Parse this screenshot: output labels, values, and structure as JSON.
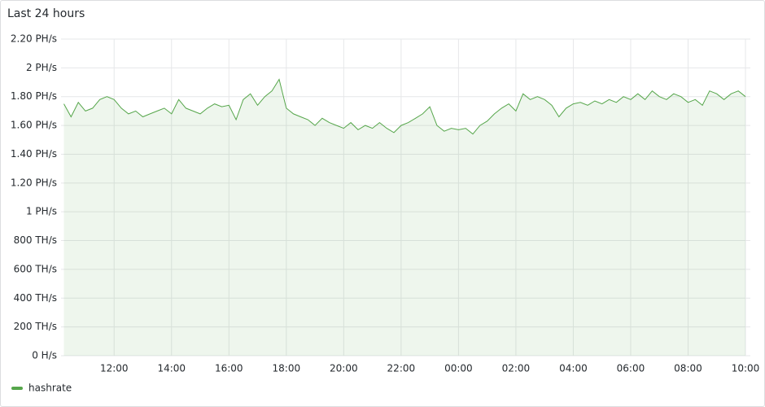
{
  "chart_data": {
    "type": "line",
    "title": "Last 24 hours",
    "x": [
      10.25,
      10.5,
      10.75,
      11,
      11.25,
      11.5,
      11.75,
      12,
      12.25,
      12.5,
      12.75,
      13,
      13.25,
      13.5,
      13.75,
      14,
      14.25,
      14.5,
      14.75,
      15,
      15.25,
      15.5,
      15.75,
      16,
      16.25,
      16.5,
      16.75,
      17,
      17.25,
      17.5,
      17.75,
      18,
      18.25,
      18.5,
      18.75,
      19,
      19.25,
      19.5,
      19.75,
      20,
      20.25,
      20.5,
      20.75,
      21,
      21.25,
      21.5,
      21.75,
      22,
      22.25,
      22.5,
      22.75,
      23,
      23.25,
      23.5,
      23.75,
      24,
      24.25,
      24.5,
      24.75,
      25,
      25.25,
      25.5,
      25.75,
      26,
      26.25,
      26.5,
      26.75,
      27,
      27.25,
      27.5,
      27.75,
      28,
      28.25,
      28.5,
      28.75,
      29,
      29.25,
      29.5,
      29.75,
      30,
      30.25,
      30.5,
      30.75,
      31,
      31.25,
      31.5,
      31.75,
      32,
      32.25,
      32.5,
      32.75,
      33,
      33.25,
      33.5,
      33.75,
      34
    ],
    "series": [
      {
        "name": "hashrate",
        "color": "#56a64b",
        "values": [
          1.75,
          1.66,
          1.76,
          1.7,
          1.72,
          1.78,
          1.8,
          1.78,
          1.72,
          1.68,
          1.7,
          1.66,
          1.68,
          1.7,
          1.72,
          1.68,
          1.78,
          1.72,
          1.7,
          1.68,
          1.72,
          1.75,
          1.73,
          1.74,
          1.64,
          1.78,
          1.82,
          1.74,
          1.8,
          1.84,
          1.92,
          1.72,
          1.68,
          1.66,
          1.64,
          1.6,
          1.65,
          1.62,
          1.6,
          1.58,
          1.62,
          1.57,
          1.6,
          1.58,
          1.62,
          1.58,
          1.55,
          1.6,
          1.62,
          1.65,
          1.68,
          1.73,
          1.6,
          1.56,
          1.58,
          1.57,
          1.58,
          1.54,
          1.6,
          1.63,
          1.68,
          1.72,
          1.75,
          1.7,
          1.82,
          1.78,
          1.8,
          1.78,
          1.74,
          1.66,
          1.72,
          1.75,
          1.76,
          1.74,
          1.77,
          1.75,
          1.78,
          1.76,
          1.8,
          1.78,
          1.82,
          1.78,
          1.84,
          1.8,
          1.78,
          1.82,
          1.8,
          1.76,
          1.78,
          1.74,
          1.84,
          1.82,
          1.78,
          1.82,
          1.84,
          1.8
        ]
      }
    ],
    "xlim": [
      10.15,
      34.17
    ],
    "xticks": [
      {
        "value": 12,
        "label": "12:00"
      },
      {
        "value": 14,
        "label": "14:00"
      },
      {
        "value": 16,
        "label": "16:00"
      },
      {
        "value": 18,
        "label": "18:00"
      },
      {
        "value": 20,
        "label": "20:00"
      },
      {
        "value": 22,
        "label": "22:00"
      },
      {
        "value": 24,
        "label": "00:00"
      },
      {
        "value": 26,
        "label": "02:00"
      },
      {
        "value": 28,
        "label": "04:00"
      },
      {
        "value": 30,
        "label": "06:00"
      },
      {
        "value": 32,
        "label": "08:00"
      },
      {
        "value": 34,
        "label": "10:00"
      }
    ],
    "ylim": [
      0,
      2.2
    ],
    "yticks": [
      {
        "value": 0,
        "label": "0 H/s"
      },
      {
        "value": 0.2,
        "label": "200 TH/s"
      },
      {
        "value": 0.4,
        "label": "400 TH/s"
      },
      {
        "value": 0.6,
        "label": "600 TH/s"
      },
      {
        "value": 0.8,
        "label": "800 TH/s"
      },
      {
        "value": 1,
        "label": "1 PH/s"
      },
      {
        "value": 1.2,
        "label": "1.20 PH/s"
      },
      {
        "value": 1.4,
        "label": "1.40 PH/s"
      },
      {
        "value": 1.6,
        "label": "1.60 PH/s"
      },
      {
        "value": 1.8,
        "label": "1.80 PH/s"
      },
      {
        "value": 2,
        "label": "2 PH/s"
      },
      {
        "value": 2.2,
        "label": "2.20 PH/s"
      }
    ],
    "grid": true,
    "legend": "bottom-left"
  }
}
